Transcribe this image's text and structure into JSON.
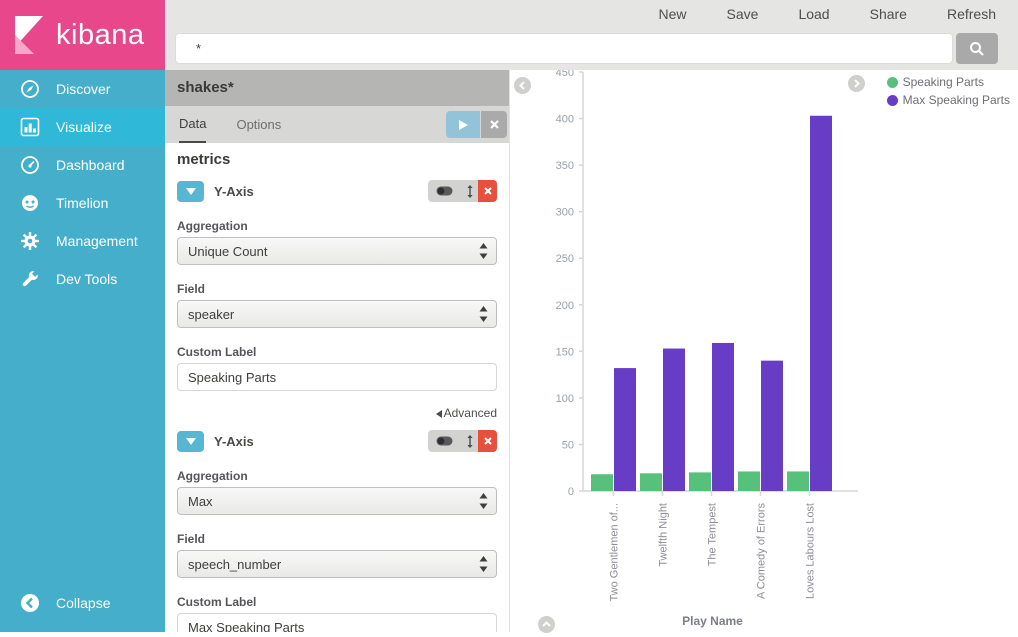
{
  "app": {
    "logo_text": "kibana"
  },
  "topnav": {
    "items": [
      "New",
      "Save",
      "Load",
      "Share",
      "Refresh"
    ]
  },
  "search": {
    "value": "*",
    "icon": "magnifier-icon"
  },
  "sidebar": {
    "items": [
      {
        "label": "Discover",
        "icon": "compass-icon",
        "active": false
      },
      {
        "label": "Visualize",
        "icon": "bar-chart-icon",
        "active": true
      },
      {
        "label": "Dashboard",
        "icon": "gauge-icon",
        "active": false
      },
      {
        "label": "Timelion",
        "icon": "owl-icon",
        "active": false
      },
      {
        "label": "Management",
        "icon": "gear-icon",
        "active": false
      },
      {
        "label": "Dev Tools",
        "icon": "wrench-icon",
        "active": false
      }
    ],
    "collapse_label": "Collapse"
  },
  "editor": {
    "index_pattern": "shakes*",
    "tabs": [
      "Data",
      "Options"
    ],
    "active_tab": "Data",
    "section_title": "metrics",
    "advanced_label": "Advanced",
    "aggs": [
      {
        "title": "Y-Axis",
        "aggregation_label": "Aggregation",
        "aggregation": "Unique Count",
        "field_label": "Field",
        "field": "speaker",
        "custom_label_label": "Custom Label",
        "custom_label": "Speaking Parts"
      },
      {
        "title": "Y-Axis",
        "aggregation_label": "Aggregation",
        "aggregation": "Max",
        "field_label": "Field",
        "field": "speech_number",
        "custom_label_label": "Custom Label",
        "custom_label": "Max Speaking Parts"
      }
    ]
  },
  "colors": {
    "brand_pink": "#E8478B",
    "sidebar_teal": "#44AECB",
    "sidebar_active": "#2FB8D8",
    "accent_blue": "#57B7D2",
    "danger_red": "#E7503C",
    "series_green": "#57C17B",
    "series_purple": "#663DC4"
  },
  "chart_data": {
    "type": "bar",
    "title": "",
    "categories": [
      "Two Gentlemen of...",
      "Twelfth Night",
      "The Tempest",
      "A Comedy of Errors",
      "Loves Labours Lost"
    ],
    "series": [
      {
        "name": "Speaking Parts",
        "color": "#57C17B",
        "values": [
          18,
          19,
          20,
          21,
          21
        ]
      },
      {
        "name": "Max Speaking Parts",
        "color": "#663DC4",
        "values": [
          132,
          153,
          159,
          140,
          403
        ]
      }
    ],
    "xlabel": "Play Name",
    "ylabel": "",
    "ylim": [
      0,
      450
    ],
    "ytick_step": 50,
    "grid": false,
    "legend_position": "top-right"
  }
}
